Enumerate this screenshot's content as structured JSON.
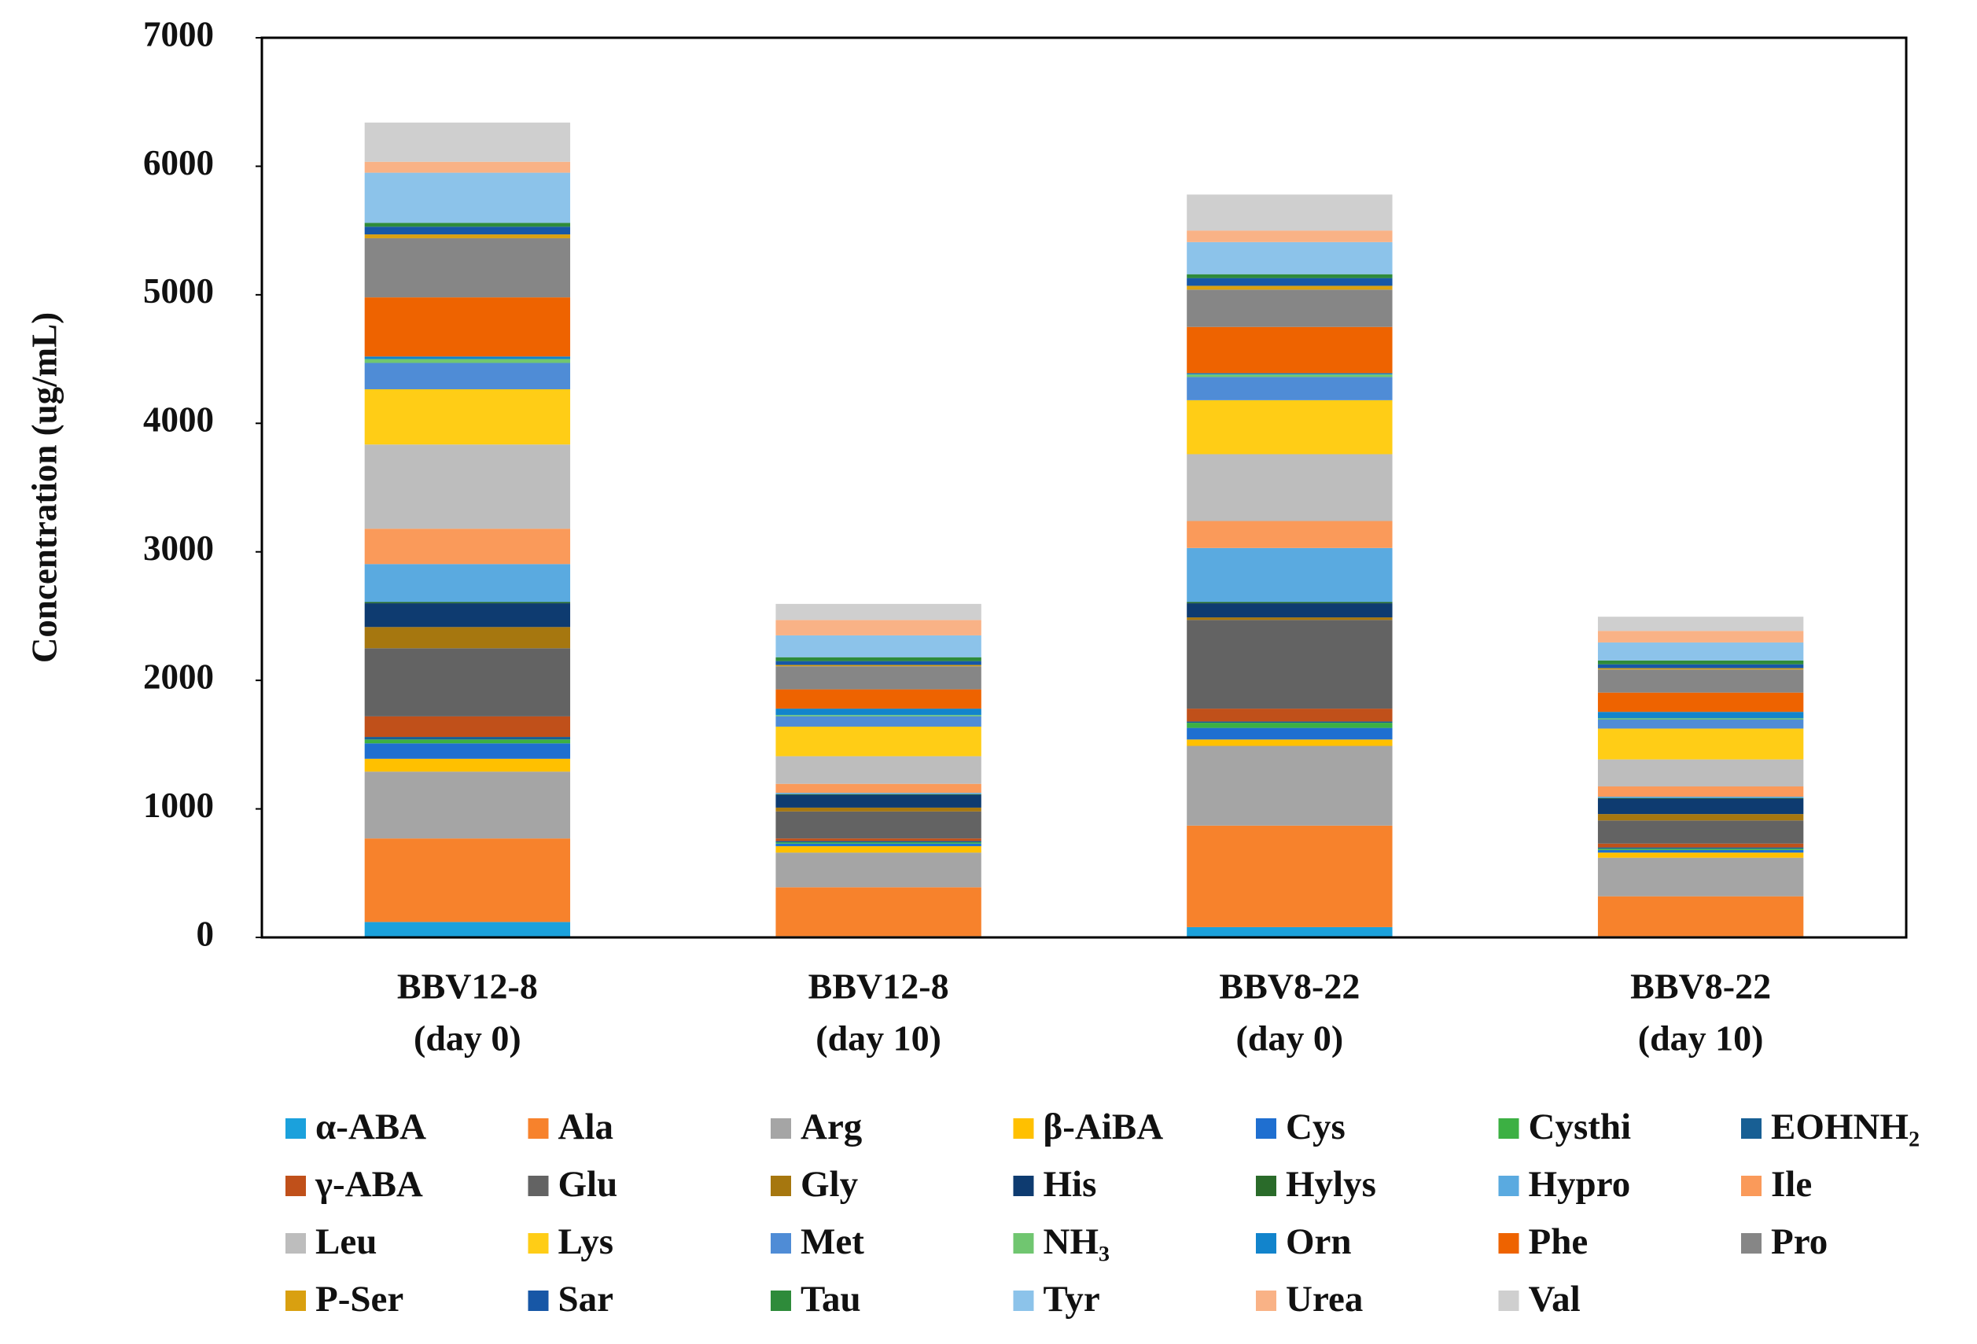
{
  "chart_data": {
    "type": "stacked_bar",
    "y_label": "Concentration (ug/mL)",
    "categories": [
      [
        "BBV12-8",
        "(day 0)"
      ],
      [
        "BBV12-8",
        "(day 10)"
      ],
      [
        "BBV8-22",
        "(day 0)"
      ],
      [
        "BBV8-22",
        "(day 10)"
      ]
    ],
    "ylim": [
      0,
      7000
    ],
    "yticks": [
      0,
      1000,
      2000,
      3000,
      4000,
      5000,
      6000,
      7000
    ],
    "grid": false,
    "legend_position": "bottom",
    "series": [
      {
        "name": "α-ABA",
        "color": "#1ba1dc",
        "values": [
          120,
          10,
          80,
          10
        ]
      },
      {
        "name": "Ala",
        "color": "#f7822c",
        "values": [
          650,
          380,
          790,
          310
        ]
      },
      {
        "name": "Arg",
        "color": "#a5a5a5",
        "values": [
          520,
          270,
          620,
          300
        ]
      },
      {
        "name": "β-AiBA",
        "color": "#ffc000",
        "values": [
          100,
          50,
          50,
          40
        ]
      },
      {
        "name": "Cys",
        "color": "#1f6fd0",
        "values": [
          120,
          20,
          90,
          20
        ]
      },
      {
        "name": "Cysthi",
        "color": "#3cb043",
        "values": [
          30,
          10,
          40,
          10
        ]
      },
      {
        "name": "EOHNH₂",
        "color": "#185f94",
        "values": [
          20,
          10,
          10,
          10
        ]
      },
      {
        "name": "γ-ABA",
        "color": "#c0501a",
        "values": [
          160,
          20,
          100,
          30
        ]
      },
      {
        "name": "Glu",
        "color": "#636363",
        "values": [
          530,
          210,
          690,
          180
        ]
      },
      {
        "name": "Gly",
        "color": "#a6770f",
        "values": [
          165,
          30,
          20,
          50
        ]
      },
      {
        "name": "His",
        "color": "#0e3b70",
        "values": [
          185,
          100,
          110,
          120
        ]
      },
      {
        "name": "Hylys",
        "color": "#2a6b2a",
        "values": [
          10,
          5,
          10,
          5
        ]
      },
      {
        "name": "Hypro",
        "color": "#5aaae0",
        "values": [
          295,
          10,
          420,
          10
        ]
      },
      {
        "name": "Ile",
        "color": "#fa9a5a",
        "values": [
          275,
          70,
          210,
          80
        ]
      },
      {
        "name": "Leu",
        "color": "#bdbdbd",
        "values": [
          655,
          215,
          520,
          210
        ]
      },
      {
        "name": "Lys",
        "color": "#ffcd16",
        "values": [
          430,
          230,
          420,
          240
        ]
      },
      {
        "name": "Met",
        "color": "#4f8cd6",
        "values": [
          205,
          80,
          180,
          70
        ]
      },
      {
        "name": "NH₃",
        "color": "#70c670",
        "values": [
          30,
          10,
          20,
          10
        ]
      },
      {
        "name": "Orn",
        "color": "#1284cc",
        "values": [
          20,
          50,
          10,
          50
        ]
      },
      {
        "name": "Phe",
        "color": "#ee6300",
        "values": [
          460,
          150,
          360,
          150
        ]
      },
      {
        "name": "Pro",
        "color": "#868686",
        "values": [
          460,
          180,
          290,
          180
        ]
      },
      {
        "name": "P-Ser",
        "color": "#d9a010",
        "values": [
          30,
          10,
          30,
          10
        ]
      },
      {
        "name": "Sar",
        "color": "#1757a6",
        "values": [
          60,
          30,
          60,
          30
        ]
      },
      {
        "name": "Tau",
        "color": "#2e8b3a",
        "values": [
          30,
          30,
          30,
          30
        ]
      },
      {
        "name": "Tyr",
        "color": "#8cc3ea",
        "values": [
          390,
          170,
          250,
          140
        ]
      },
      {
        "name": "Urea",
        "color": "#f9b286",
        "values": [
          85,
          120,
          90,
          90
        ]
      },
      {
        "name": "Val",
        "color": "#cfcfcf",
        "values": [
          305,
          125,
          280,
          110
        ]
      }
    ]
  }
}
